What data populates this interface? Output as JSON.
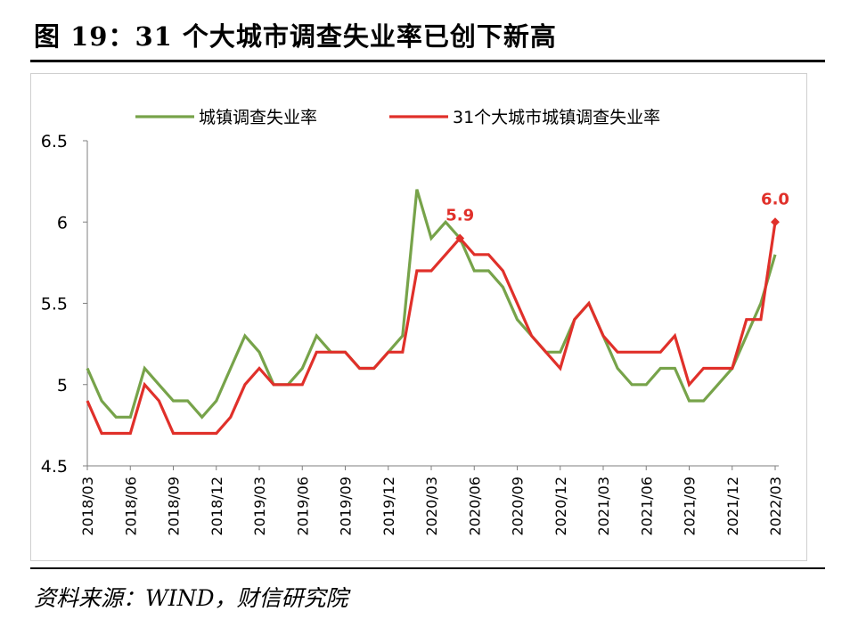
{
  "header": {
    "title": "图 19：31 个大城市调查失业率已创下新高"
  },
  "footer": {
    "source": "资料来源：WIND，财信研究院"
  },
  "chart_data": {
    "type": "line",
    "title": "",
    "xlabel": "",
    "ylabel": "",
    "ylim": [
      4.5,
      6.5
    ],
    "yticks": [
      "4.5",
      "5",
      "5.5",
      "6",
      "6.5"
    ],
    "categories": [
      "2018/03",
      "2018/04",
      "2018/05",
      "2018/06",
      "2018/07",
      "2018/08",
      "2018/09",
      "2018/10",
      "2018/11",
      "2018/12",
      "2019/01",
      "2019/02",
      "2019/03",
      "2019/04",
      "2019/05",
      "2019/06",
      "2019/07",
      "2019/08",
      "2019/09",
      "2019/10",
      "2019/11",
      "2019/12",
      "2020/01",
      "2020/02",
      "2020/03",
      "2020/04",
      "2020/05",
      "2020/06",
      "2020/07",
      "2020/08",
      "2020/09",
      "2020/10",
      "2020/11",
      "2020/12",
      "2021/01",
      "2021/02",
      "2021/03",
      "2021/04",
      "2021/05",
      "2021/06",
      "2021/07",
      "2021/08",
      "2021/09",
      "2021/10",
      "2021/11",
      "2021/12",
      "2022/01",
      "2022/02",
      "2022/03"
    ],
    "xticks": [
      "2018/03",
      "2018/06",
      "2018/09",
      "2018/12",
      "2019/03",
      "2019/06",
      "2019/09",
      "2019/12",
      "2020/03",
      "2020/06",
      "2020/09",
      "2020/12",
      "2021/03",
      "2021/06",
      "2021/09",
      "2021/12",
      "2022/03"
    ],
    "series": [
      {
        "name": "城镇调查失业率",
        "color": "#77a34a",
        "values": [
          5.1,
          4.9,
          4.8,
          4.8,
          5.1,
          5.0,
          4.9,
          4.9,
          4.8,
          4.9,
          5.1,
          5.3,
          5.2,
          5.0,
          5.0,
          5.1,
          5.3,
          5.2,
          5.2,
          5.1,
          5.1,
          5.2,
          5.3,
          6.2,
          5.9,
          6.0,
          5.9,
          5.7,
          5.7,
          5.6,
          5.4,
          5.3,
          5.2,
          5.2,
          5.4,
          5.5,
          5.3,
          5.1,
          5.0,
          5.0,
          5.1,
          5.1,
          4.9,
          4.9,
          5.0,
          5.1,
          5.3,
          5.5,
          5.8
        ]
      },
      {
        "name": "31个大城市城镇调查失业率",
        "color": "#e0302a",
        "values": [
          4.9,
          4.7,
          4.7,
          4.7,
          5.0,
          4.9,
          4.7,
          4.7,
          4.7,
          4.7,
          4.8,
          5.0,
          5.1,
          5.0,
          5.0,
          5.0,
          5.2,
          5.2,
          5.2,
          5.1,
          5.1,
          5.2,
          5.2,
          5.7,
          5.7,
          5.8,
          5.9,
          5.8,
          5.8,
          5.7,
          5.5,
          5.3,
          5.2,
          5.1,
          5.4,
          5.5,
          5.3,
          5.2,
          5.2,
          5.2,
          5.2,
          5.3,
          5.0,
          5.1,
          5.1,
          5.1,
          5.4,
          5.4,
          6.0
        ]
      }
    ],
    "annotations": [
      {
        "series": 1,
        "index": 26,
        "label": "5.9"
      },
      {
        "series": 1,
        "index": 48,
        "label": "6.0"
      }
    ],
    "legend": "top-center"
  }
}
